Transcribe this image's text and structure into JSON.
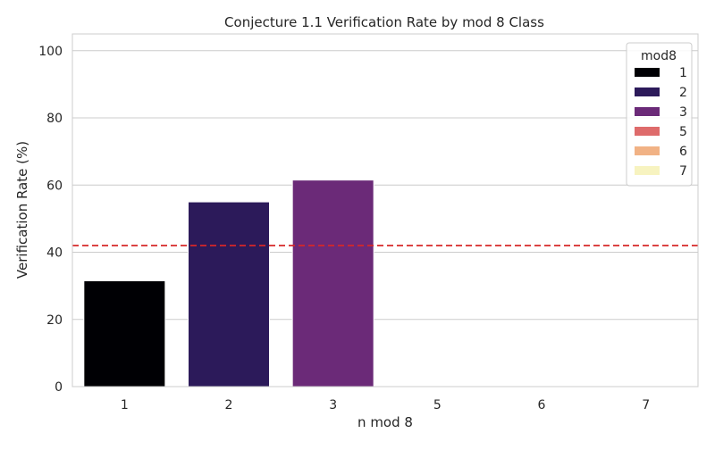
{
  "chart_data": {
    "type": "bar",
    "title": "Conjecture 1.1 Verification Rate by mod 8 Class",
    "xlabel": "n mod 8",
    "ylabel": "Verification Rate (%)",
    "categories": [
      "1",
      "2",
      "3",
      "5",
      "6",
      "7"
    ],
    "values": [
      31.5,
      55,
      61.5,
      0,
      0,
      0
    ],
    "ylim": [
      0,
      105
    ],
    "yticks": [
      0,
      20,
      40,
      60,
      80,
      100
    ],
    "reference_line": {
      "value": 42,
      "style": "dashed",
      "color": "#d62728"
    },
    "grid": true,
    "legend": {
      "title": "mod8",
      "placement": "top-right",
      "entries": [
        "1",
        "2",
        "3",
        "5",
        "6",
        "7"
      ]
    },
    "colors": [
      "#000004",
      "#2c1a5a",
      "#6b2a78",
      "#de6b6b",
      "#f1b285",
      "#f7f3c0"
    ]
  }
}
